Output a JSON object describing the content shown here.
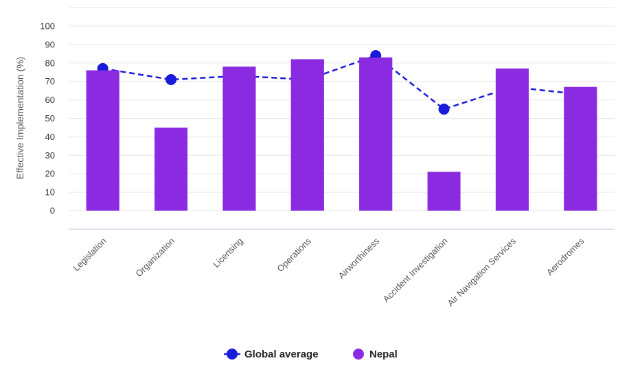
{
  "chart_data": {
    "type": "bar",
    "title": "",
    "xlabel": "",
    "ylabel": "Effective Implementation (%)",
    "ylim": [
      0,
      100
    ],
    "yticks": [
      0,
      10,
      20,
      30,
      40,
      50,
      60,
      70,
      80,
      90,
      100
    ],
    "grid": true,
    "legend_position": "bottom-center",
    "categories": [
      "Legislation",
      "Organization",
      "Licensing",
      "Operations",
      "Airworthiness",
      "Accident Investigation",
      "Air Navigation Services",
      "Aerodromes"
    ],
    "series": [
      {
        "name": "Global average",
        "type": "line",
        "style": "dashed",
        "color": "#1a1adb",
        "values": [
          77,
          71,
          73,
          71,
          84,
          55,
          67,
          63
        ]
      },
      {
        "name": "Nepal",
        "type": "bar",
        "color": "#8a2be2",
        "values": [
          76,
          45,
          78,
          82,
          83,
          21,
          77,
          67
        ]
      }
    ]
  }
}
